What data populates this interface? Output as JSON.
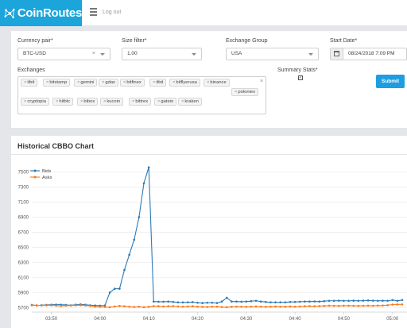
{
  "header": {
    "logo_text": "CoinRoutes",
    "logout_label": "Log out"
  },
  "filters": {
    "currency_pair": {
      "label": "Currency pair*",
      "value": "BTC-USD"
    },
    "size_filter": {
      "label": "Size filter*",
      "value": "1.00"
    },
    "exchange_group": {
      "label": "Exchange Group",
      "value": "USA"
    },
    "start_date": {
      "label": "Start Date*",
      "value": "08/24/2018 7:09 PM"
    },
    "exchanges": {
      "label": "Exchanges",
      "tags": [
        "itbit",
        "bitstamp",
        "gemini",
        "gdax",
        "bitfinex",
        "itbit",
        "bitflyerusa",
        "binance",
        "poloniex",
        "cryptopia",
        "hitbtc",
        "bibox",
        "kucoin",
        "bittrex",
        "gateio",
        "kraken"
      ]
    },
    "summary_stats": {
      "label": "Summary Stats*",
      "checked": true
    },
    "submit_label": "Submit"
  },
  "chart": {
    "panel_title": "Historical CBBO Chart"
  },
  "chart_data": {
    "type": "line",
    "title": "",
    "xlabel": "",
    "ylabel": "",
    "ylim": [
      5640,
      7620
    ],
    "xlim": [
      "03:46",
      "05:02"
    ],
    "yticks": [
      5700,
      5900,
      6100,
      6300,
      6500,
      6700,
      6900,
      7100,
      7300,
      7500
    ],
    "xticks": [
      "03:50",
      "04:00",
      "04:10",
      "04:20",
      "04:30",
      "04:40",
      "04:50",
      "05:00"
    ],
    "grid": "horizontal",
    "legend": "top-left",
    "series": [
      {
        "name": "Bids",
        "color": "#2b7bb9",
        "points": [
          [
            "03:46",
            5735
          ],
          [
            "03:47",
            5728
          ],
          [
            "03:48",
            5732
          ],
          [
            "03:49",
            5735
          ],
          [
            "03:50",
            5738
          ],
          [
            "03:51",
            5740
          ],
          [
            "03:52",
            5738
          ],
          [
            "03:53",
            5735
          ],
          [
            "03:54",
            5730
          ],
          [
            "03:55",
            5738
          ],
          [
            "03:56",
            5742
          ],
          [
            "03:57",
            5738
          ],
          [
            "03:58",
            5730
          ],
          [
            "03:59",
            5728
          ],
          [
            "04:00",
            5725
          ],
          [
            "04:01",
            5728
          ],
          [
            "04:02",
            5900
          ],
          [
            "04:03",
            5950
          ],
          [
            "04:04",
            5950
          ],
          [
            "04:05",
            6200
          ],
          [
            "04:06",
            6400
          ],
          [
            "04:07",
            6600
          ],
          [
            "04:08",
            6900
          ],
          [
            "04:09",
            7350
          ],
          [
            "04:10",
            7560
          ],
          [
            "04:11",
            5780
          ],
          [
            "04:12",
            5778
          ],
          [
            "04:13",
            5778
          ],
          [
            "04:14",
            5780
          ],
          [
            "04:15",
            5775
          ],
          [
            "04:16",
            5770
          ],
          [
            "04:17",
            5768
          ],
          [
            "04:18",
            5770
          ],
          [
            "04:19",
            5772
          ],
          [
            "04:20",
            5765
          ],
          [
            "04:21",
            5760
          ],
          [
            "04:22",
            5765
          ],
          [
            "04:23",
            5765
          ],
          [
            "04:24",
            5760
          ],
          [
            "04:25",
            5780
          ],
          [
            "04:26",
            5830
          ],
          [
            "04:27",
            5780
          ],
          [
            "04:28",
            5780
          ],
          [
            "04:29",
            5778
          ],
          [
            "04:30",
            5780
          ],
          [
            "04:31",
            5785
          ],
          [
            "04:32",
            5790
          ],
          [
            "04:33",
            5780
          ],
          [
            "04:34",
            5775
          ],
          [
            "04:35",
            5770
          ],
          [
            "04:36",
            5770
          ],
          [
            "04:37",
            5770
          ],
          [
            "04:38",
            5770
          ],
          [
            "04:39",
            5775
          ],
          [
            "04:40",
            5775
          ],
          [
            "04:41",
            5778
          ],
          [
            "04:42",
            5780
          ],
          [
            "04:43",
            5780
          ],
          [
            "04:44",
            5782
          ],
          [
            "04:45",
            5780
          ],
          [
            "04:46",
            5785
          ],
          [
            "04:47",
            5790
          ],
          [
            "04:48",
            5790
          ],
          [
            "04:49",
            5792
          ],
          [
            "04:50",
            5790
          ],
          [
            "04:51",
            5790
          ],
          [
            "04:52",
            5792
          ],
          [
            "04:53",
            5790
          ],
          [
            "04:54",
            5792
          ],
          [
            "04:55",
            5795
          ],
          [
            "04:56",
            5792
          ],
          [
            "04:57",
            5790
          ],
          [
            "04:58",
            5792
          ],
          [
            "04:59",
            5790
          ],
          [
            "05:00",
            5800
          ],
          [
            "05:01",
            5790
          ],
          [
            "05:02",
            5800
          ]
        ]
      },
      {
        "name": "Asks",
        "color": "#f47b20",
        "points": [
          [
            "03:46",
            5730
          ],
          [
            "03:47",
            5730
          ],
          [
            "03:48",
            5728
          ],
          [
            "03:49",
            5730
          ],
          [
            "03:50",
            5730
          ],
          [
            "03:51",
            5725
          ],
          [
            "03:52",
            5722
          ],
          [
            "03:53",
            5725
          ],
          [
            "03:54",
            5728
          ],
          [
            "03:55",
            5730
          ],
          [
            "03:56",
            5732
          ],
          [
            "03:57",
            5728
          ],
          [
            "03:58",
            5722
          ],
          [
            "03:59",
            5712
          ],
          [
            "04:00",
            5710
          ],
          [
            "04:01",
            5708
          ],
          [
            "04:02",
            5705
          ],
          [
            "04:03",
            5715
          ],
          [
            "04:04",
            5722
          ],
          [
            "04:05",
            5718
          ],
          [
            "04:06",
            5712
          ],
          [
            "04:07",
            5708
          ],
          [
            "04:08",
            5712
          ],
          [
            "04:09",
            5705
          ],
          [
            "04:10",
            5710
          ],
          [
            "04:11",
            5720
          ],
          [
            "04:12",
            5718
          ],
          [
            "04:13",
            5715
          ],
          [
            "04:14",
            5718
          ],
          [
            "04:15",
            5720
          ],
          [
            "04:16",
            5715
          ],
          [
            "04:17",
            5712
          ],
          [
            "04:18",
            5715
          ],
          [
            "04:19",
            5718
          ],
          [
            "04:20",
            5712
          ],
          [
            "04:21",
            5710
          ],
          [
            "04:22",
            5708
          ],
          [
            "04:23",
            5712
          ],
          [
            "04:24",
            5712
          ],
          [
            "04:25",
            5708
          ],
          [
            "04:26",
            5705
          ],
          [
            "04:27",
            5710
          ],
          [
            "04:28",
            5712
          ],
          [
            "04:29",
            5712
          ],
          [
            "04:30",
            5710
          ],
          [
            "04:31",
            5712
          ],
          [
            "04:32",
            5714
          ],
          [
            "04:33",
            5712
          ],
          [
            "04:34",
            5710
          ],
          [
            "04:35",
            5712
          ],
          [
            "04:36",
            5714
          ],
          [
            "04:37",
            5712
          ],
          [
            "04:38",
            5712
          ],
          [
            "04:39",
            5714
          ],
          [
            "04:40",
            5712
          ],
          [
            "04:41",
            5715
          ],
          [
            "04:42",
            5718
          ],
          [
            "04:43",
            5720
          ],
          [
            "04:44",
            5718
          ],
          [
            "04:45",
            5720
          ],
          [
            "04:46",
            5722
          ],
          [
            "04:47",
            5725
          ],
          [
            "04:48",
            5724
          ],
          [
            "04:49",
            5722
          ],
          [
            "04:50",
            5725
          ],
          [
            "04:51",
            5725
          ],
          [
            "04:52",
            5724
          ],
          [
            "04:53",
            5722
          ],
          [
            "04:54",
            5724
          ],
          [
            "04:55",
            5725
          ],
          [
            "04:56",
            5724
          ],
          [
            "04:57",
            5726
          ],
          [
            "04:58",
            5728
          ],
          [
            "04:59",
            5732
          ],
          [
            "05:00",
            5740
          ],
          [
            "05:01",
            5742
          ],
          [
            "05:02",
            5742
          ]
        ]
      }
    ]
  }
}
